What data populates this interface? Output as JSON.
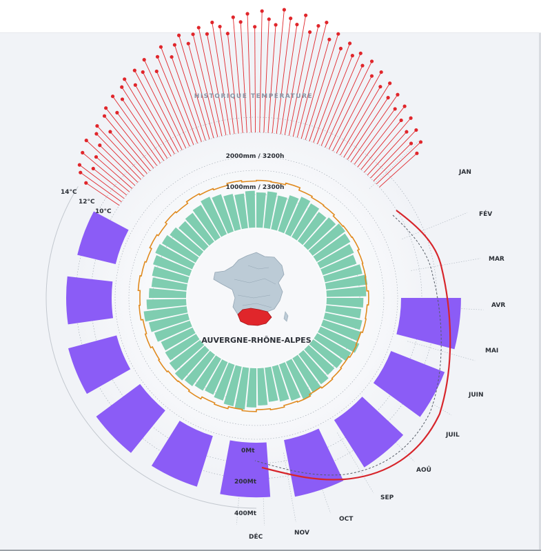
{
  "chart_data": {
    "type": "radial",
    "region_name": "AUVERGNE-RHÔNE-ALPES",
    "months": [
      "JAN",
      "FÉV",
      "MAR",
      "AVR",
      "MAI",
      "JUIN",
      "JUIL",
      "AOÛ",
      "SEP",
      "OCT",
      "NOV",
      "DÉC"
    ],
    "temperature_history": {
      "title": "HISTORIQUE TEMPÉRATURE",
      "axis_labels": [
        "14°C",
        "12°C",
        "10°C"
      ],
      "color": "#e0262b",
      "values": [
        11.4,
        11.8,
        12.0,
        11.5,
        12.2,
        11.7,
        12.4,
        11.9,
        12.3,
        12.5,
        12.0,
        12.6,
        12.8,
        12.4,
        13.0,
        12.7,
        13.1,
        13.3,
        12.9,
        13.4,
        13.2,
        13.6,
        13.0,
        13.5,
        13.8,
        13.3,
        13.7,
        14.0,
        13.6,
        13.9,
        14.1,
        13.8,
        14.2,
        14.0,
        13.7,
        14.3,
        14.1,
        14.4,
        13.9,
        14.5,
        14.2,
        14.0,
        14.6,
        14.3,
        14.1,
        14.5,
        13.9,
        14.2,
        14.4,
        13.8,
        14.1,
        13.6,
        13.9,
        13.5,
        13.7,
        13.3,
        13.6,
        13.1,
        13.4,
        12.9,
        13.2,
        12.7,
        13.0,
        12.5,
        12.8,
        12.3,
        12.6,
        12.1,
        12.4,
        11.9,
        12.2,
        11.8
      ]
    },
    "rings": {
      "inner_label": "1000mm / 2300h",
      "outer_label": "2000mm / 3200h"
    },
    "precipitation": {
      "color": "#7fcdb0",
      "values": [
        880,
        920,
        860,
        940,
        1010,
        970,
        900,
        950,
        1020,
        980,
        930,
        890,
        960,
        1040,
        990,
        920,
        880,
        950,
        1000,
        1060,
        980,
        910,
        870,
        940,
        990,
        1030,
        960,
        900,
        860,
        930,
        980,
        1050,
        1010,
        940,
        890,
        920,
        970,
        1020,
        960,
        900,
        870,
        940,
        1000,
        1080,
        990,
        930,
        880,
        910,
        960,
        1010,
        970,
        920,
        860,
        900,
        950,
        1030,
        980,
        910,
        870,
        920
      ]
    },
    "sunshine": {
      "color": "#e08a1e",
      "values": [
        2350,
        2330,
        2380,
        2300,
        2260,
        2240,
        2190,
        2210,
        2230,
        2180,
        2160,
        2140,
        2190,
        2150,
        2170,
        2120,
        2140,
        2100,
        2130,
        2160,
        2120,
        2180,
        2150,
        2200,
        2170,
        2230,
        2190,
        2250,
        2210,
        2280,
        2240,
        2260,
        2300,
        2270,
        2330,
        2290,
        2350,
        2320,
        2380,
        2340,
        2300,
        2360,
        2310,
        2370,
        2330,
        2390,
        2350,
        2310,
        2370,
        2330
      ]
    },
    "co2": {
      "axis_labels": [
        "0Mt",
        "200Mt",
        "400Mt"
      ],
      "color": "#8b5cf6",
      "values": [
        260,
        300,
        330,
        360,
        350,
        360,
        380,
        370,
        380,
        395
      ]
    },
    "trend": {
      "solid_color": "#d7252b",
      "dashed_color": "#555c66"
    }
  }
}
